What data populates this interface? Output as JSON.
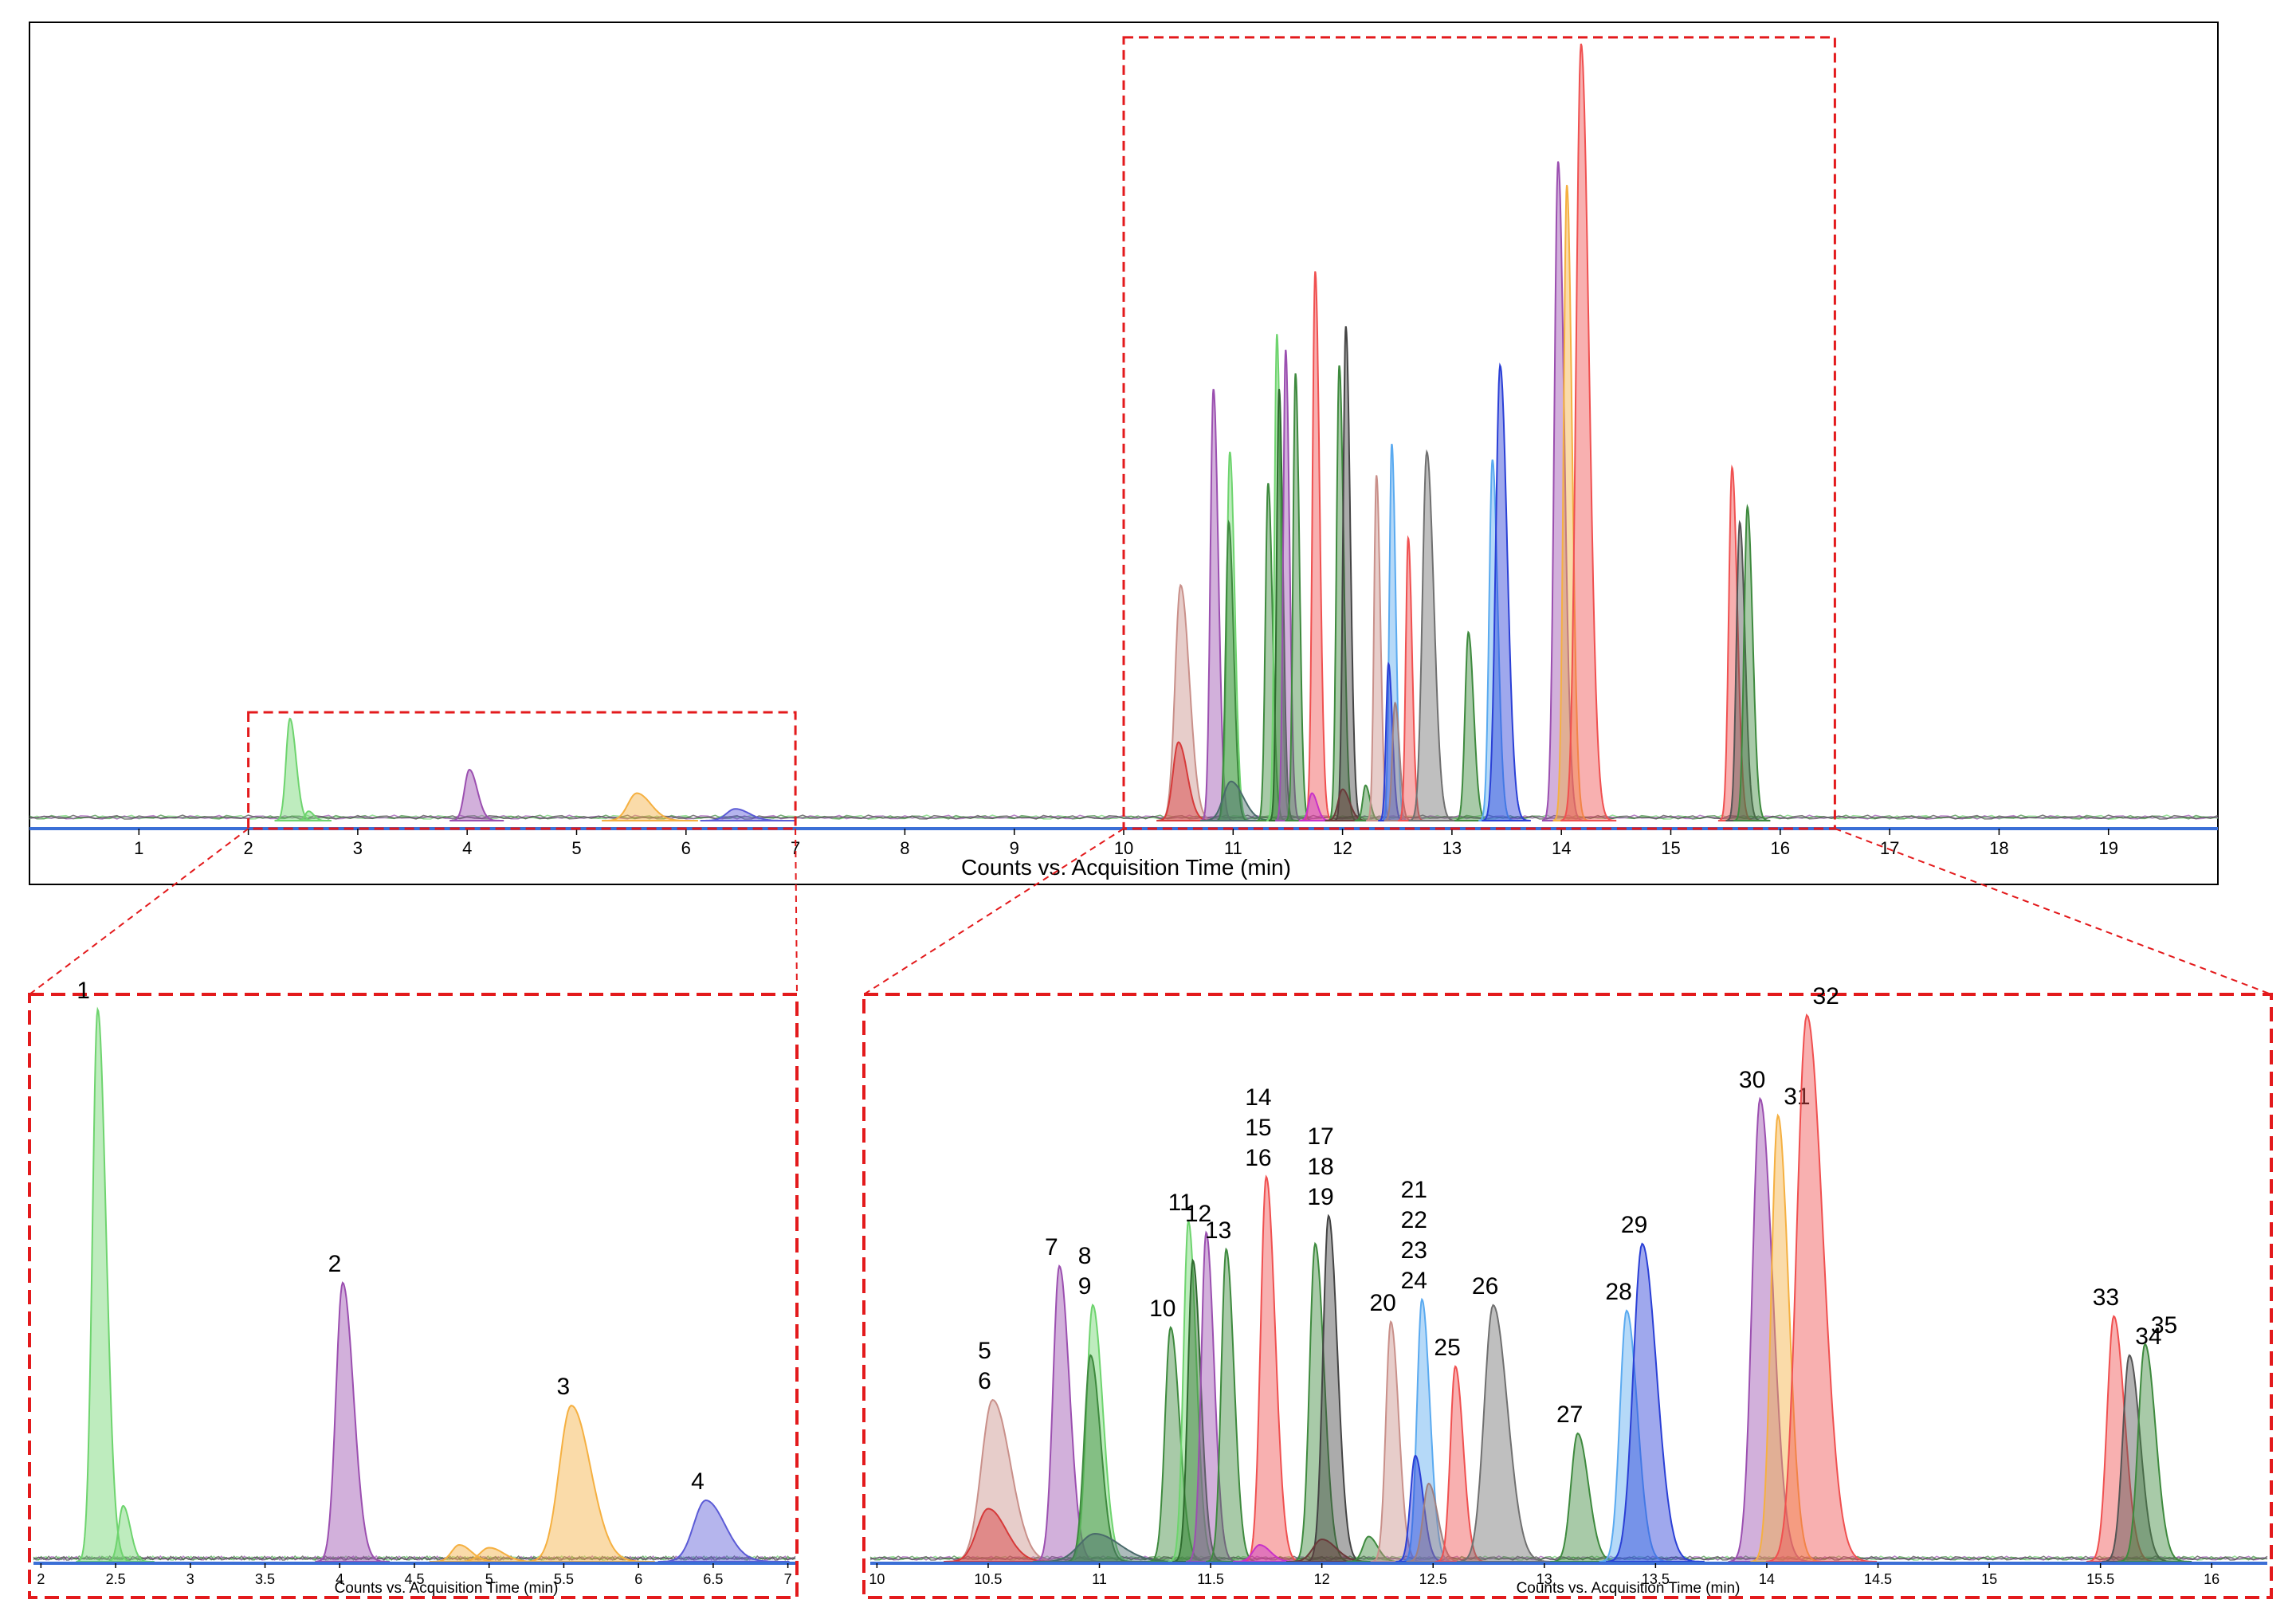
{
  "chart_data": [
    {
      "id": "overview",
      "type": "area",
      "xlabel": "Counts vs. Acquisition Time (min)",
      "xlim": [
        0,
        20
      ],
      "ylim": [
        0,
        100
      ],
      "x_ticks": [
        "1",
        "2",
        "3",
        "4",
        "5",
        "6",
        "7",
        "8",
        "9",
        "10",
        "11",
        "12",
        "13",
        "14",
        "15",
        "16",
        "17",
        "18",
        "19"
      ],
      "zoom_boxes": [
        {
          "xrange": [
            2.0,
            7.0
          ],
          "ymax": 13
        },
        {
          "xrange": [
            10.0,
            16.5
          ],
          "ymax": 99
        }
      ],
      "peaks": [
        {
          "x": 2.38,
          "h": 13,
          "w": 0.035,
          "color": "#6ed46e"
        },
        {
          "x": 2.55,
          "h": 1.2,
          "w": 0.03,
          "color": "#6ed46e"
        },
        {
          "x": 4.02,
          "h": 6.5,
          "w": 0.045,
          "color": "#9b4fb0"
        },
        {
          "x": 5.55,
          "h": 3.5,
          "w": 0.08,
          "color": "#f5b041"
        },
        {
          "x": 6.45,
          "h": 1.5,
          "w": 0.08,
          "color": "#5b5bd6"
        },
        {
          "x": 10.52,
          "h": 30,
          "w": 0.05,
          "color": "#c9908a"
        },
        {
          "x": 10.5,
          "h": 10,
          "w": 0.05,
          "color": "#d63a3a"
        },
        {
          "x": 10.82,
          "h": 55,
          "w": 0.028,
          "color": "#9b4fb0"
        },
        {
          "x": 10.97,
          "h": 47,
          "w": 0.028,
          "color": "#6ed46e"
        },
        {
          "x": 10.96,
          "h": 38,
          "w": 0.028,
          "color": "#3e8a3e"
        },
        {
          "x": 10.98,
          "h": 5,
          "w": 0.07,
          "color": "#4a6b6b"
        },
        {
          "x": 11.32,
          "h": 43,
          "w": 0.025,
          "color": "#3e8a3e"
        },
        {
          "x": 11.4,
          "h": 62,
          "w": 0.022,
          "color": "#6ed46e"
        },
        {
          "x": 11.42,
          "h": 55,
          "w": 0.022,
          "color": "#2e6b2e"
        },
        {
          "x": 11.48,
          "h": 60,
          "w": 0.022,
          "color": "#9b4fb0"
        },
        {
          "x": 11.57,
          "h": 57,
          "w": 0.022,
          "color": "#3e8a3e"
        },
        {
          "x": 11.75,
          "h": 70,
          "w": 0.025,
          "color": "#f05050"
        },
        {
          "x": 11.72,
          "h": 3.5,
          "w": 0.03,
          "color": "#c832c8"
        },
        {
          "x": 11.97,
          "h": 58,
          "w": 0.025,
          "color": "#3e8a3e"
        },
        {
          "x": 12.03,
          "h": 63,
          "w": 0.025,
          "color": "#444444"
        },
        {
          "x": 12.0,
          "h": 4,
          "w": 0.04,
          "color": "#6b3a3a"
        },
        {
          "x": 12.21,
          "h": 4.5,
          "w": 0.025,
          "color": "#3e8a3e"
        },
        {
          "x": 12.31,
          "h": 44,
          "w": 0.022,
          "color": "#c9908a"
        },
        {
          "x": 12.45,
          "h": 48,
          "w": 0.022,
          "color": "#5aaaf0"
        },
        {
          "x": 12.42,
          "h": 20,
          "w": 0.022,
          "color": "#2a3fd6"
        },
        {
          "x": 12.48,
          "h": 15,
          "w": 0.025,
          "color": "#a08080"
        },
        {
          "x": 12.6,
          "h": 36,
          "w": 0.022,
          "color": "#f05050"
        },
        {
          "x": 12.77,
          "h": 47,
          "w": 0.04,
          "color": "#707070"
        },
        {
          "x": 13.15,
          "h": 24,
          "w": 0.03,
          "color": "#3e8a3e"
        },
        {
          "x": 13.37,
          "h": 46,
          "w": 0.03,
          "color": "#5aaaf0"
        },
        {
          "x": 13.44,
          "h": 58,
          "w": 0.04,
          "color": "#2a3fd6"
        },
        {
          "x": 13.97,
          "h": 84,
          "w": 0.035,
          "color": "#9b4fb0"
        },
        {
          "x": 14.05,
          "h": 81,
          "w": 0.03,
          "color": "#f5b041"
        },
        {
          "x": 14.18,
          "h": 99,
          "w": 0.045,
          "color": "#f05050"
        },
        {
          "x": 15.56,
          "h": 45,
          "w": 0.03,
          "color": "#f05050"
        },
        {
          "x": 15.63,
          "h": 38,
          "w": 0.03,
          "color": "#555555"
        },
        {
          "x": 15.7,
          "h": 40,
          "w": 0.03,
          "color": "#3e8a3e"
        }
      ]
    },
    {
      "id": "inset-left",
      "type": "area",
      "xlabel": "Counts vs. Acquisition Time (min)",
      "xlim": [
        1.95,
        7.05
      ],
      "ylim": [
        0,
        100
      ],
      "x_ticks": [
        "2",
        "2.5",
        "3",
        "3.5",
        "4",
        "4.5",
        "5",
        "5.5",
        "6",
        "6.5",
        "7"
      ],
      "peaks": [
        {
          "x": 2.38,
          "h": 99,
          "w": 0.035,
          "color": "#6ed46e",
          "label": [
            "1"
          ]
        },
        {
          "x": 2.55,
          "h": 10,
          "w": 0.03,
          "color": "#6ed46e"
        },
        {
          "x": 4.02,
          "h": 50,
          "w": 0.045,
          "color": "#9b4fb0",
          "label": [
            "2"
          ]
        },
        {
          "x": 4.8,
          "h": 3,
          "w": 0.05,
          "color": "#f5b041"
        },
        {
          "x": 5.0,
          "h": 2.5,
          "w": 0.06,
          "color": "#f5b041"
        },
        {
          "x": 5.55,
          "h": 28,
          "w": 0.08,
          "color": "#f5b041",
          "label": [
            "3"
          ]
        },
        {
          "x": 6.45,
          "h": 11,
          "w": 0.08,
          "color": "#5b5bd6",
          "label": [
            "4"
          ]
        }
      ]
    },
    {
      "id": "inset-right",
      "type": "area",
      "xlabel": "Counts vs. Acquisition Time (min)",
      "xlim": [
        9.97,
        16.25
      ],
      "ylim": [
        0,
        100
      ],
      "x_ticks": [
        "10",
        "10.5",
        "11",
        "11.5",
        "12",
        "12.5",
        "13",
        "13.5",
        "14",
        "14.5",
        "15",
        "15.5",
        "16"
      ],
      "peaks": [
        {
          "x": 10.52,
          "h": 29,
          "w": 0.05,
          "color": "#c9908a",
          "label": [
            "5",
            "6"
          ]
        },
        {
          "x": 10.5,
          "h": 9.5,
          "w": 0.05,
          "color": "#d63a3a"
        },
        {
          "x": 10.82,
          "h": 53,
          "w": 0.028,
          "color": "#9b4fb0",
          "label": [
            "7"
          ]
        },
        {
          "x": 10.97,
          "h": 46,
          "w": 0.028,
          "color": "#6ed46e",
          "label": [
            "8",
            "9"
          ]
        },
        {
          "x": 10.96,
          "h": 37,
          "w": 0.028,
          "color": "#3e8a3e"
        },
        {
          "x": 10.98,
          "h": 5,
          "w": 0.07,
          "color": "#4a6b6b"
        },
        {
          "x": 11.32,
          "h": 42,
          "w": 0.025,
          "color": "#3e8a3e",
          "label": [
            "10"
          ]
        },
        {
          "x": 11.4,
          "h": 61,
          "w": 0.022,
          "color": "#6ed46e",
          "label": [
            "11"
          ]
        },
        {
          "x": 11.42,
          "h": 54,
          "w": 0.022,
          "color": "#2e6b2e"
        },
        {
          "x": 11.48,
          "h": 59,
          "w": 0.022,
          "color": "#9b4fb0",
          "label": [
            "12"
          ]
        },
        {
          "x": 11.57,
          "h": 56,
          "w": 0.022,
          "color": "#3e8a3e",
          "label": [
            "13"
          ]
        },
        {
          "x": 11.75,
          "h": 69,
          "w": 0.025,
          "color": "#f05050",
          "label": [
            "14",
            "15",
            "16"
          ]
        },
        {
          "x": 11.72,
          "h": 3,
          "w": 0.03,
          "color": "#c832c8"
        },
        {
          "x": 11.97,
          "h": 57,
          "w": 0.025,
          "color": "#3e8a3e"
        },
        {
          "x": 12.03,
          "h": 62,
          "w": 0.025,
          "color": "#444444",
          "label": [
            "17",
            "18",
            "19"
          ]
        },
        {
          "x": 12.0,
          "h": 4,
          "w": 0.04,
          "color": "#6b3a3a"
        },
        {
          "x": 12.21,
          "h": 4.5,
          "w": 0.025,
          "color": "#3e8a3e"
        },
        {
          "x": 12.31,
          "h": 43,
          "w": 0.022,
          "color": "#c9908a",
          "label": [
            "20"
          ]
        },
        {
          "x": 12.45,
          "h": 47,
          "w": 0.022,
          "color": "#5aaaf0",
          "label": [
            "21",
            "22",
            "23",
            "24"
          ]
        },
        {
          "x": 12.42,
          "h": 19,
          "w": 0.022,
          "color": "#2a3fd6"
        },
        {
          "x": 12.48,
          "h": 14,
          "w": 0.025,
          "color": "#a08080"
        },
        {
          "x": 12.6,
          "h": 35,
          "w": 0.022,
          "color": "#f05050",
          "label": [
            "25"
          ]
        },
        {
          "x": 12.77,
          "h": 46,
          "w": 0.04,
          "color": "#707070",
          "label": [
            "26"
          ]
        },
        {
          "x": 13.15,
          "h": 23,
          "w": 0.03,
          "color": "#3e8a3e",
          "label": [
            "27"
          ]
        },
        {
          "x": 13.37,
          "h": 45,
          "w": 0.03,
          "color": "#5aaaf0",
          "label": [
            "28"
          ]
        },
        {
          "x": 13.44,
          "h": 57,
          "w": 0.04,
          "color": "#2a3fd6",
          "label": [
            "29"
          ]
        },
        {
          "x": 13.97,
          "h": 83,
          "w": 0.035,
          "color": "#9b4fb0",
          "label": [
            "30"
          ]
        },
        {
          "x": 14.05,
          "h": 80,
          "w": 0.03,
          "color": "#f5b041",
          "label": [
            "31"
          ]
        },
        {
          "x": 14.18,
          "h": 98,
          "w": 0.045,
          "color": "#f05050",
          "label": [
            "32"
          ]
        },
        {
          "x": 15.56,
          "h": 44,
          "w": 0.03,
          "color": "#f05050",
          "label": [
            "33"
          ]
        },
        {
          "x": 15.63,
          "h": 37,
          "w": 0.03,
          "color": "#555555",
          "label": [
            "34"
          ]
        },
        {
          "x": 15.7,
          "h": 39,
          "w": 0.03,
          "color": "#3e8a3e",
          "label": [
            "35"
          ]
        }
      ]
    }
  ]
}
